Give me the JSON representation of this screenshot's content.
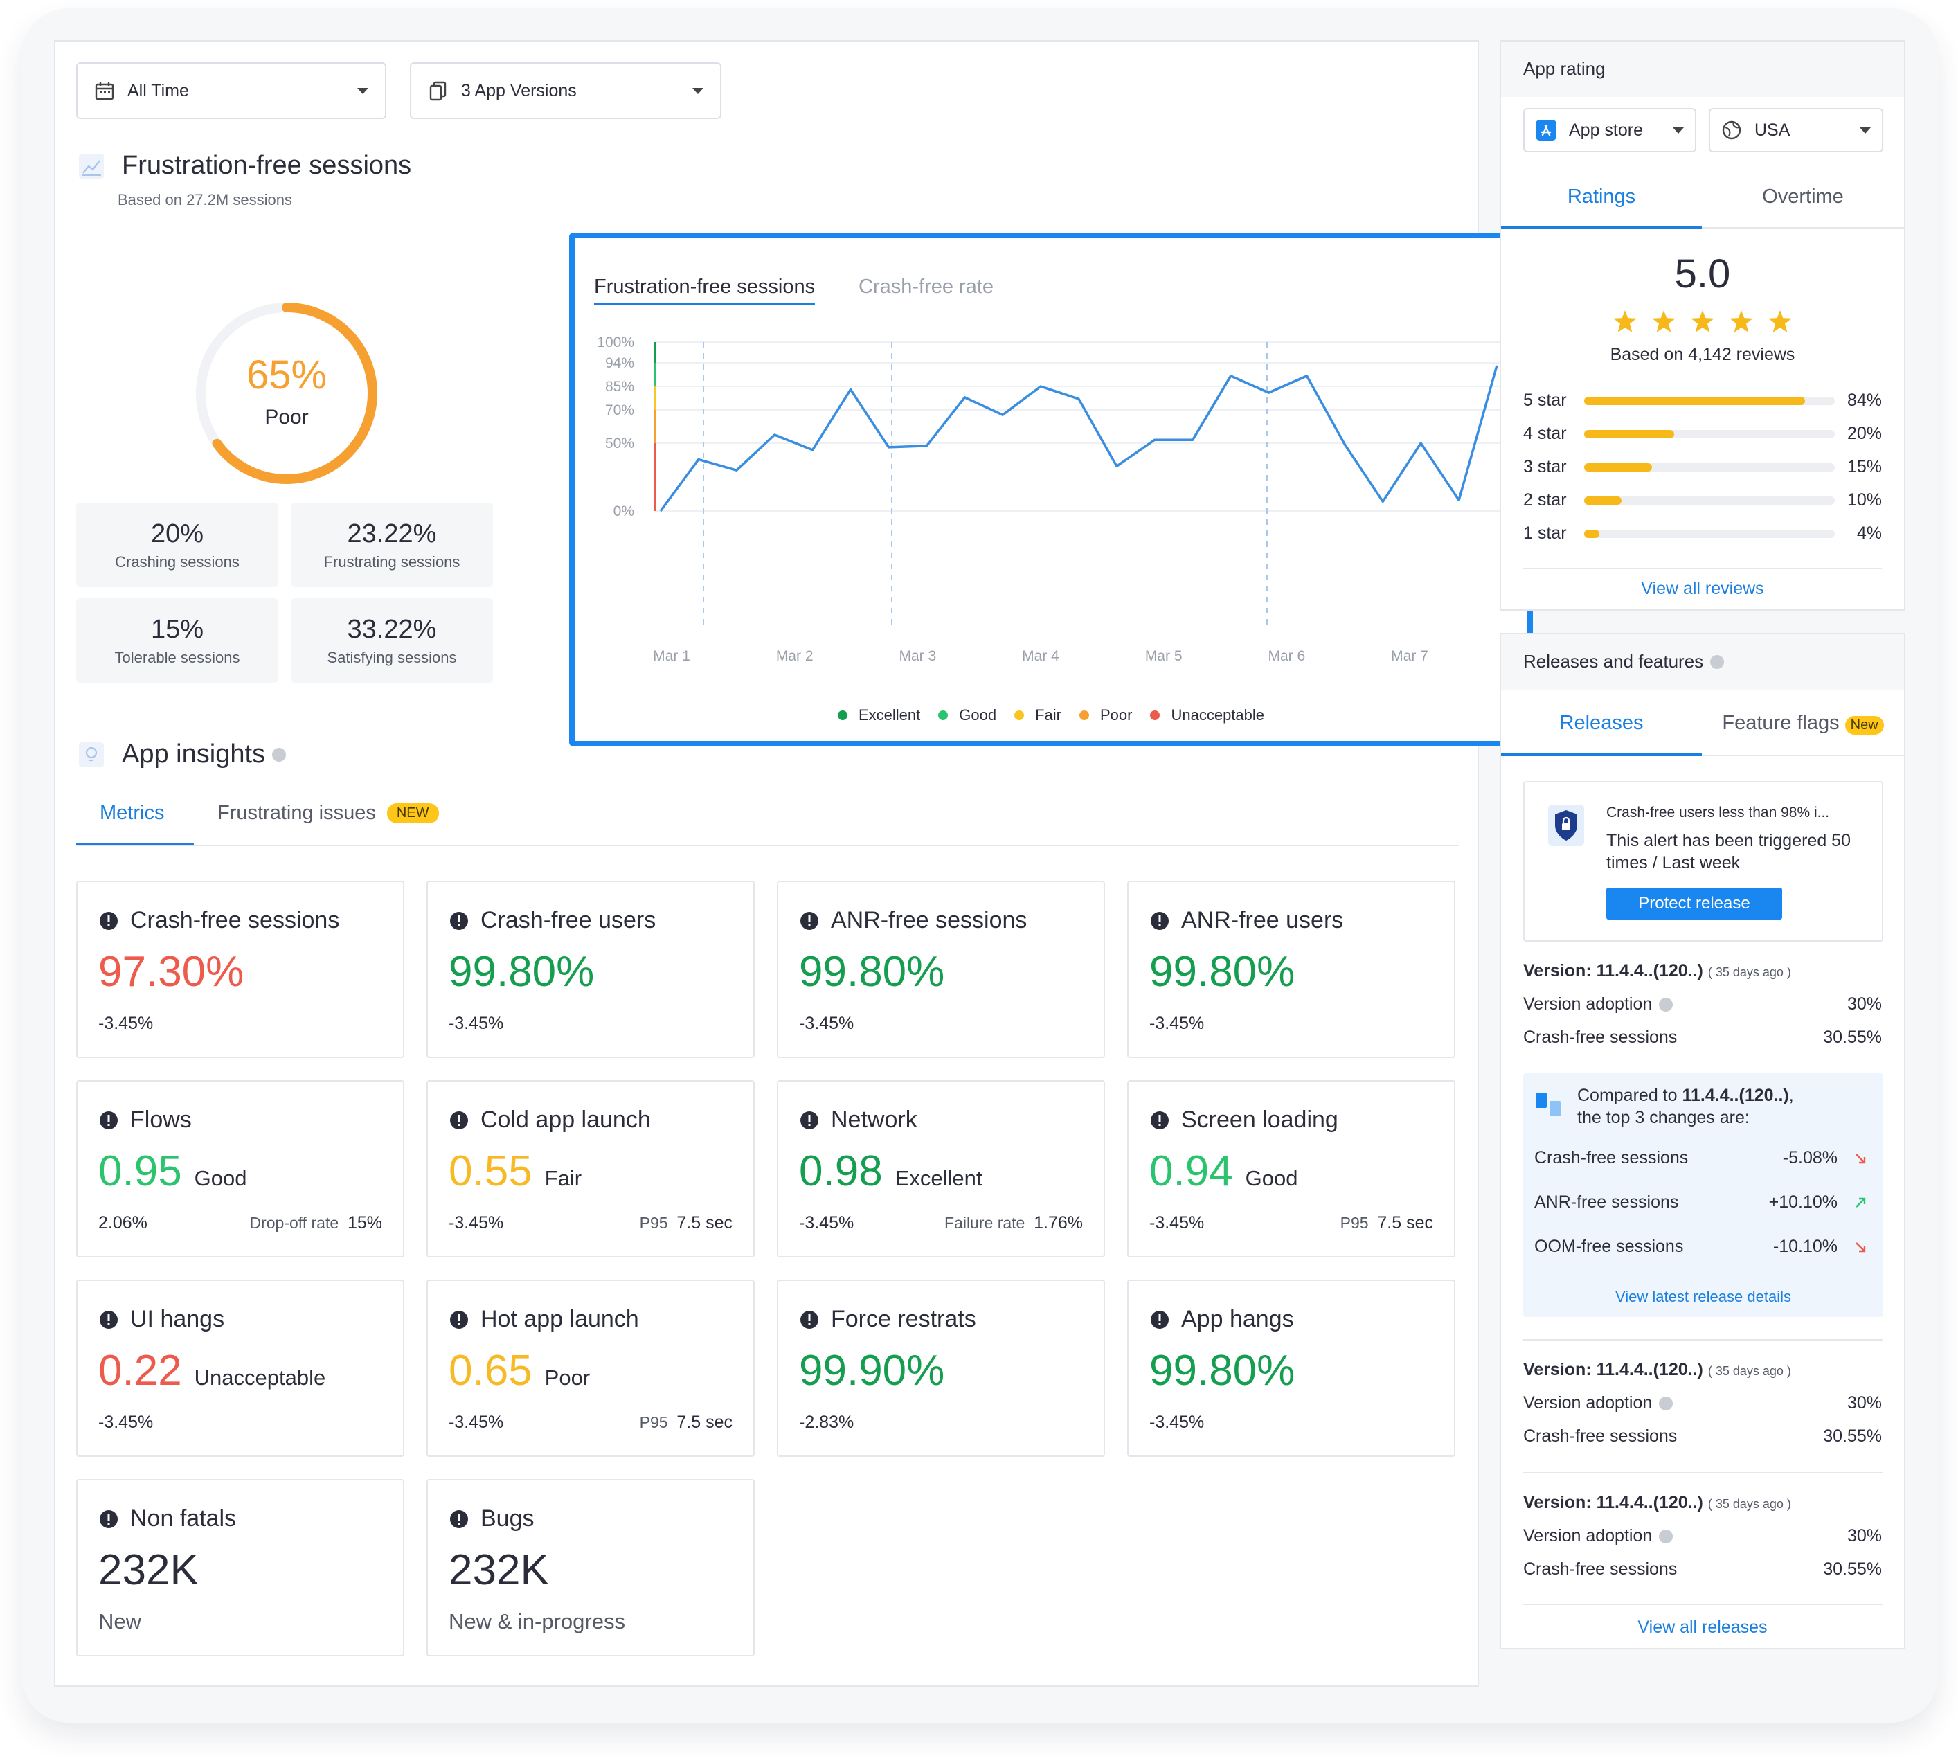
{
  "filters": {
    "time": "All Time",
    "versions": "3 App Versions"
  },
  "ffs": {
    "title": "Frustration-free sessions",
    "subtitle": "Based on 27.2M sessions",
    "score": "65%",
    "score_value": 65,
    "score_label": "Poor",
    "stats": [
      {
        "value": "20%",
        "label": "Crashing sessions"
      },
      {
        "value": "23.22%",
        "label": "Frustrating sessions"
      },
      {
        "value": "15%",
        "label": "Tolerable sessions"
      },
      {
        "value": "33.22%",
        "label": "Satisfying sessions"
      }
    ]
  },
  "chart": {
    "tabs": [
      "Frustration-free sessions",
      "Crash-free rate"
    ],
    "legend": [
      {
        "label": "Excellent",
        "color": "#159e4f"
      },
      {
        "label": "Good",
        "color": "#2cc36f"
      },
      {
        "label": "Fair",
        "color": "#f7c624"
      },
      {
        "label": "Poor",
        "color": "#f7a032"
      },
      {
        "label": "Unacceptable",
        "color": "#ec5b4c"
      }
    ]
  },
  "chart_data": {
    "type": "line",
    "x_ticks": [
      "Mar 1",
      "Mar 2",
      "Mar 3",
      "Mar 4",
      "Mar 5",
      "Mar 6",
      "Mar 7"
    ],
    "y_ticks": [
      "100%",
      "94%",
      "85%",
      "70%",
      "50%",
      "0%"
    ],
    "series": [
      {
        "values": [
          0,
          38,
          30,
          55,
          45,
          83,
          47,
          48,
          78,
          67,
          85,
          77,
          33,
          52,
          52,
          89,
          81,
          89,
          49,
          7,
          50,
          8,
          93
        ]
      }
    ],
    "line_color": "#3a8ee0"
  },
  "insights": {
    "title": "App insights",
    "tabs": [
      "Metrics",
      "Frustrating issues"
    ],
    "new_badge": "NEW",
    "cards": [
      {
        "title": "Crash-free sessions",
        "value": "97.30%",
        "color": "red",
        "delta": "-3.45%",
        "icon": "alert-icon"
      },
      {
        "title": "Crash-free users",
        "value": "99.80%",
        "color": "green",
        "delta": "-3.45%",
        "icon": "alert-icon"
      },
      {
        "title": "ANR-free sessions",
        "value": "99.80%",
        "color": "green",
        "delta": "-3.45%",
        "icon": "alert-icon"
      },
      {
        "title": "ANR-free users",
        "value": "99.80%",
        "color": "green",
        "delta": "-3.45%",
        "icon": "alert-icon"
      },
      {
        "title": "Flows",
        "value": "0.95",
        "qual": "Good",
        "color": "lgreen",
        "delta": "2.06%",
        "right_label": "Drop-off rate",
        "right_value": "15%",
        "icon": "flows-icon"
      },
      {
        "title": "Cold app launch",
        "value": "0.55",
        "qual": "Fair",
        "color": "yellow",
        "delta": "-3.45%",
        "right_label": "P95",
        "right_value": "7.5 sec",
        "icon": "launch-icon"
      },
      {
        "title": "Network",
        "value": "0.98",
        "qual": "Excellent",
        "color": "green",
        "delta": "-3.45%",
        "right_label": "Failure rate",
        "right_value": "1.76%",
        "icon": "network-icon"
      },
      {
        "title": "Screen loading",
        "value": "0.94",
        "qual": "Good",
        "color": "lgreen",
        "delta": "-3.45%",
        "right_label": "P95",
        "right_value": "7.5 sec",
        "icon": "screen-icon"
      },
      {
        "title": "UI hangs",
        "value": "0.22",
        "qual": "Unacceptable",
        "color": "red",
        "delta": "-3.45%",
        "icon": "hang-icon"
      },
      {
        "title": "Hot app launch",
        "value": "0.65",
        "qual": "Poor",
        "color": "yellow",
        "delta": "-3.45%",
        "right_label": "P95",
        "right_value": "7.5 sec",
        "icon": "launch-icon"
      },
      {
        "title": "Force restrats",
        "value": "99.90%",
        "color": "green",
        "delta": "-2.83%",
        "icon": "restart-icon"
      },
      {
        "title": "App hangs",
        "value": "99.80%",
        "color": "green",
        "delta": "-3.45%",
        "icon": "clock-icon"
      },
      {
        "title": "Non fatals",
        "value": "232K",
        "color": "plain",
        "delta": "New",
        "icon": "alert-icon"
      },
      {
        "title": "Bugs",
        "value": "232K",
        "color": "plain",
        "delta": "New & in-progress",
        "icon": "bug-icon"
      }
    ]
  },
  "rating": {
    "title": "App rating",
    "store": "App store",
    "country": "USA",
    "tabs": [
      "Ratings",
      "Overtime"
    ],
    "score": "5.0",
    "based_on": "Based on 4,142 reviews",
    "bars": [
      {
        "label": "5 star",
        "pct": "84%",
        "value": 84,
        "fill": 0.88
      },
      {
        "label": "4 star",
        "pct": "20%",
        "value": 20,
        "fill": 0.36
      },
      {
        "label": "3 star",
        "pct": "15%",
        "value": 15,
        "fill": 0.27
      },
      {
        "label": "2 star",
        "pct": "10%",
        "value": 10,
        "fill": 0.15
      },
      {
        "label": "1 star",
        "pct": "4%",
        "value": 4,
        "fill": 0.06
      }
    ],
    "view_all": "View all reviews"
  },
  "releases": {
    "title": "Releases and features",
    "tabs": [
      "Releases",
      "Feature flags"
    ],
    "new_badge": "New",
    "alert": {
      "title": "Crash-free users less than 98% i...",
      "body": "This alert has been triggered 50 times / Last week",
      "button": "Protect release"
    },
    "versions": [
      {
        "version": "Version: 11.4.4..(120..)",
        "ago": "( 35 days ago )",
        "adoption_label": "Version adoption",
        "adoption": "30%",
        "cfs_label": "Crash-free sessions",
        "cfs": "30.55%"
      },
      {
        "version": "Version: 11.4.4..(120..)",
        "ago": "( 35 days ago )",
        "adoption_label": "Version adoption",
        "adoption": "30%",
        "cfs_label": "Crash-free sessions",
        "cfs": "30.55%"
      },
      {
        "version": "Version: 11.4.4..(120..)",
        "ago": "( 35 days ago )",
        "adoption_label": "Version adoption",
        "adoption": "30%",
        "cfs_label": "Crash-free sessions",
        "cfs": "30.55%"
      }
    ],
    "compare": {
      "prefix": "Compared to",
      "version": "11.4.4..(120..)",
      "suffix": ",",
      "line2": "the top 3 changes are:",
      "rows": [
        {
          "label": "Crash-free sessions",
          "value": "-5.08%",
          "dir": "down"
        },
        {
          "label": "ANR-free sessions",
          "value": "+10.10%",
          "dir": "up"
        },
        {
          "label": "OOM-free sessions",
          "value": "-10.10%",
          "dir": "down"
        }
      ],
      "link": "View latest release details"
    },
    "view_all": "View all releases"
  }
}
